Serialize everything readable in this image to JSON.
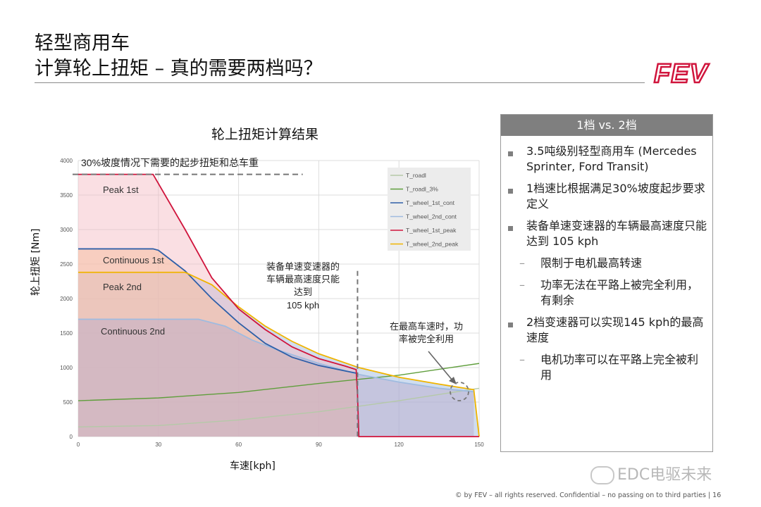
{
  "header": {
    "title_line1": "轻型商用车",
    "title_line2": "计算轮上扭矩 – 真的需要两档吗？",
    "logo_text": "FEV",
    "brand_color": "#d0143c"
  },
  "chart": {
    "title": "轮上扭矩计算结果",
    "ylabel": "轮上扭矩 [Nm]",
    "xlabel": "车速[kph]",
    "annotations": {
      "grade_line": "30%坡度情况下需要的起步扭矩和总车重",
      "peak1": "Peak 1st",
      "cont1": "Continuous 1st",
      "peak2": "Peak 2nd",
      "cont2": "Continuous 2nd",
      "single_speed_l1": "装备单速变速器的",
      "single_speed_l2": "车辆最高速度只能",
      "single_speed_l3": "达到",
      "single_speed_l4": "105 kph",
      "topspeed_l1": "在最高车速时，功",
      "topspeed_l2": "率被完全利用"
    }
  },
  "chart_data": {
    "type": "line",
    "title": "轮上扭矩计算结果",
    "xlabel": "车速[kph]",
    "ylabel": "轮上扭矩 [Nm]",
    "xlim": [
      0,
      150
    ],
    "ylim": [
      0,
      4000
    ],
    "xticks": [
      0,
      30,
      60,
      90,
      120,
      150
    ],
    "yticks": [
      0,
      500,
      1000,
      1500,
      2000,
      2500,
      3000,
      3500,
      4000
    ],
    "grid": true,
    "legend_position": "top-right",
    "series": [
      {
        "name": "T_roadl",
        "color": "#b5c9a8",
        "x": [
          0,
          30,
          60,
          90,
          120,
          150
        ],
        "y": [
          140,
          160,
          240,
          360,
          520,
          700
        ]
      },
      {
        "name": "T_roadl_3%",
        "color": "#5f9e3c",
        "x": [
          0,
          30,
          60,
          90,
          120,
          150
        ],
        "y": [
          520,
          560,
          640,
          770,
          890,
          1060
        ]
      },
      {
        "name": "T_wheel_1st_cont",
        "color": "#2e5fa8",
        "x": [
          0,
          28,
          30,
          40,
          50,
          60,
          70,
          80,
          90,
          100,
          104
        ],
        "y": [
          2720,
          2720,
          2700,
          2400,
          2000,
          1650,
          1350,
          1150,
          1030,
          950,
          920
        ]
      },
      {
        "name": "T_wheel_2nd_cont",
        "color": "#9fbbe0",
        "x": [
          0,
          45,
          55,
          65,
          75,
          90,
          105,
          120,
          135,
          148
        ],
        "y": [
          1700,
          1700,
          1600,
          1400,
          1250,
          1060,
          900,
          790,
          700,
          650
        ]
      },
      {
        "name": "T_wheel_1st_peak",
        "color": "#d0143c",
        "x": [
          0,
          28,
          40,
          50,
          60,
          70,
          80,
          90,
          100,
          104,
          104.5,
          105,
          150
        ],
        "y": [
          3800,
          3800,
          3000,
          2300,
          1850,
          1550,
          1300,
          1130,
          1020,
          970,
          600,
          0,
          0
        ]
      },
      {
        "name": "T_wheel_2nd_peak",
        "color": "#f0b400",
        "x": [
          0,
          40,
          50,
          60,
          70,
          80,
          90,
          105,
          120,
          135,
          148,
          150
        ],
        "y": [
          2380,
          2380,
          2200,
          1880,
          1600,
          1380,
          1200,
          1000,
          860,
          760,
          680,
          0
        ]
      }
    ],
    "reference_lines": [
      {
        "label": "30%坡度情况下需要的起步扭矩和总车重",
        "axis": "y",
        "value": 3800
      },
      {
        "label": "105 kph",
        "axis": "x",
        "value": 105
      }
    ]
  },
  "panel": {
    "header": "1档 vs. 2档",
    "bullets": [
      {
        "type": "main",
        "text": "3.5吨级别轻型商用车 (Mercedes Sprinter, Ford Transit)"
      },
      {
        "type": "main",
        "text": "1档速比根据满足30%坡度起步要求定义"
      },
      {
        "type": "main",
        "text": "装备单速变速器的车辆最高速度只能达到 105 kph"
      },
      {
        "type": "sub",
        "text": "限制于电机最高转速"
      },
      {
        "type": "sub",
        "text": "功率无法在平路上被完全利用，有剩余"
      },
      {
        "type": "main",
        "text": "2档变速器可以实现145 kph的最高速度"
      },
      {
        "type": "sub",
        "text": "电机功率可以在平路上完全被利用"
      }
    ]
  },
  "footer": {
    "text": "© by FEV – all rights reserved. Confidential – no passing on to third parties  |  16"
  },
  "watermark": {
    "text": "EDC电驱未来"
  }
}
